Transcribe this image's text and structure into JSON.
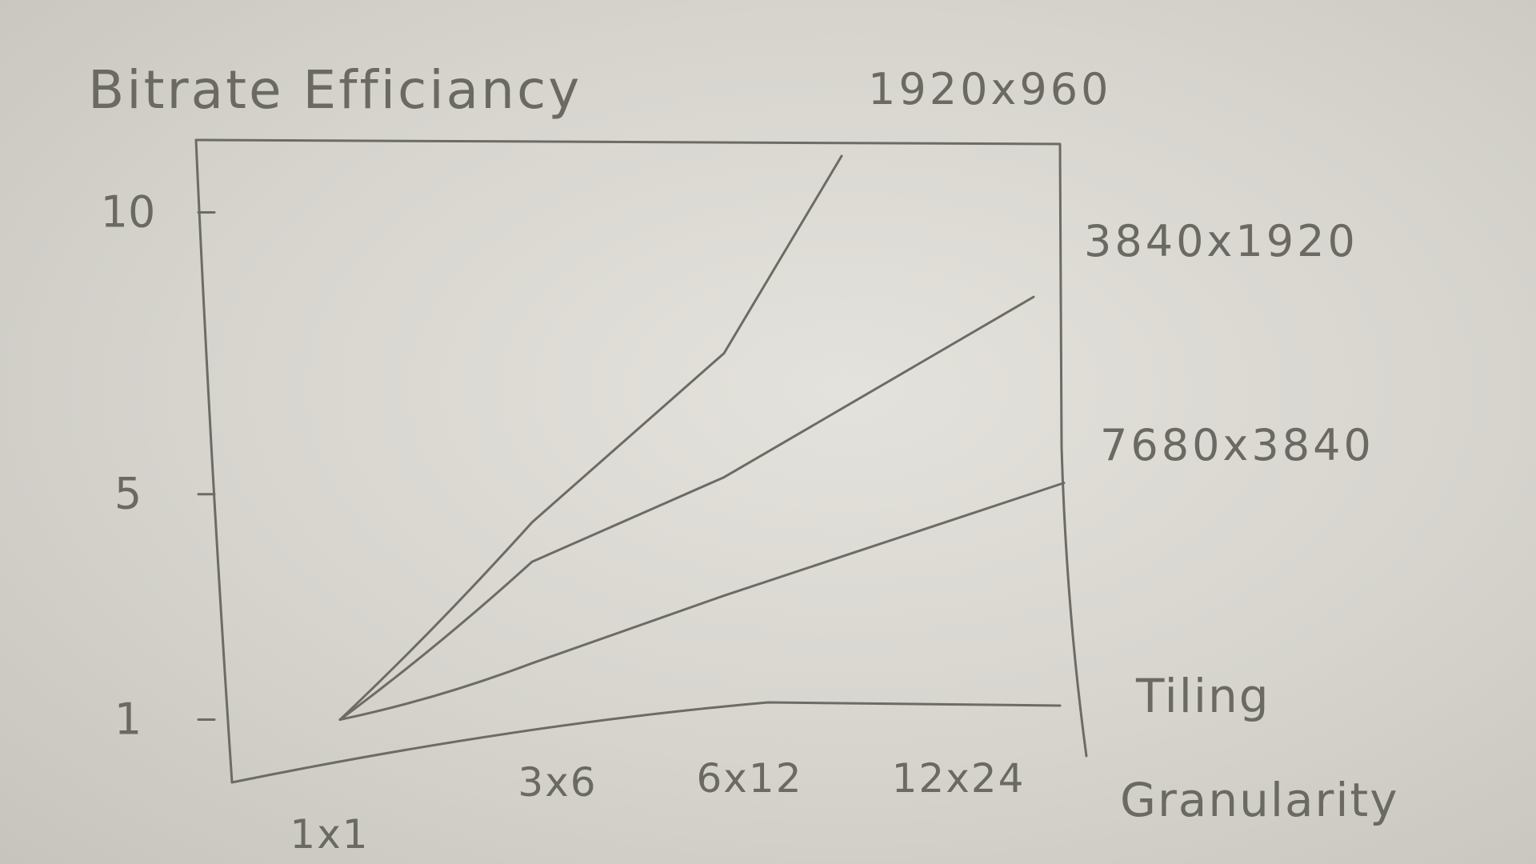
{
  "chart_data": {
    "type": "line",
    "title": "Bitrate Efficiancy",
    "xlabel": "Tiling Granularity",
    "ylabel": "",
    "categories": [
      "1x1",
      "3x6",
      "6x12",
      "12x24"
    ],
    "yticks": [
      "10",
      "5",
      "1"
    ],
    "ylim": [
      0,
      11
    ],
    "series": [
      {
        "name": "1920x960",
        "values": [
          1,
          4.5,
          7.5,
          11
        ]
      },
      {
        "name": "3840x1920",
        "values": [
          1,
          3.8,
          5.3,
          8.5
        ]
      },
      {
        "name": "7680x3840",
        "values": [
          1,
          2.0,
          3.2,
          5.2
        ]
      }
    ],
    "grid": false,
    "legend": "right-of-lines"
  },
  "colors": {
    "ink": "#6c6c64",
    "paper": "#dcdad4"
  }
}
